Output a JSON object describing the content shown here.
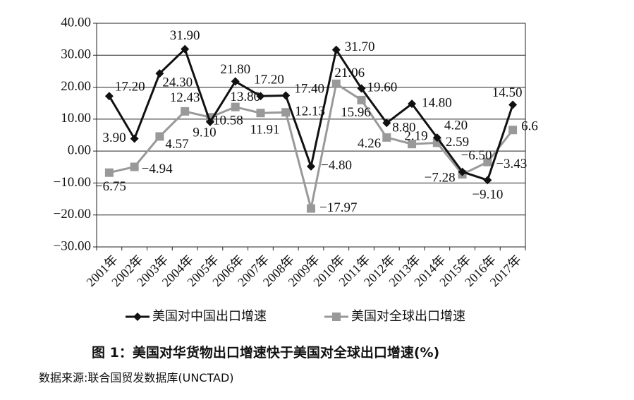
{
  "chart_data": {
    "type": "line",
    "categories": [
      "2001年",
      "2002年",
      "2003年",
      "2004年",
      "2005年",
      "2006年",
      "2007年",
      "2008年",
      "2009年",
      "2010年",
      "2011年",
      "2012年",
      "2013年",
      "2014年",
      "2015年",
      "2016年",
      "2017年"
    ],
    "series": [
      {
        "name": "美国对中国出口增速",
        "color": "#111111",
        "marker": "diamond",
        "values": [
          17.2,
          3.9,
          24.3,
          31.9,
          9.1,
          21.8,
          17.2,
          17.4,
          -4.8,
          31.7,
          19.6,
          8.8,
          14.8,
          4.2,
          -6.5,
          -9.1,
          14.5
        ],
        "labels": [
          "17.20",
          "3.90",
          "24.30",
          "31.90",
          "9.10",
          "21.80",
          "17.20",
          "17.40",
          "−4.80",
          "31.70",
          "19.60",
          "8.80",
          "14.80",
          "4.20",
          "−6.50",
          "−9.10",
          "14.50"
        ]
      },
      {
        "name": "美国对全球出口增速",
        "color": "#999999",
        "marker": "square",
        "values": [
          -6.75,
          -4.94,
          4.57,
          12.43,
          10.58,
          13.8,
          11.91,
          12.13,
          -17.97,
          21.06,
          15.96,
          4.26,
          2.19,
          2.59,
          -7.28,
          -3.43,
          6.6
        ],
        "labels": [
          "−6.75",
          "−4.94",
          "4.57",
          "12.43",
          "10.58",
          "13.80",
          "11.91",
          "12.13",
          "−17.97",
          "21.06",
          "15.96",
          "4.26",
          "2.19",
          "2.59",
          "−7.28",
          "−3.43",
          "6.6"
        ]
      }
    ],
    "yticks": [
      "40.00",
      "30.00",
      "20.00",
      "10.00",
      "0.00",
      "−10.00",
      "−20.00",
      "−30.00"
    ],
    "ylim": [
      -30,
      40
    ],
    "grid": true,
    "legend": "bottom"
  },
  "caption": "图 1：美国对华货物出口增速快于美国对全球出口增速(%)",
  "source": "数据来源:联合国贸发数据库(UNCTAD)"
}
